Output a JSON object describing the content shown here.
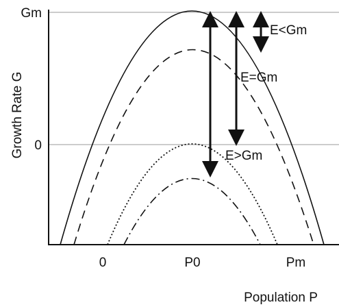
{
  "axes": {
    "x_label": "Population P",
    "y_label": "Growth Rate G",
    "x_ticks": [
      "0",
      "P0",
      "Pm"
    ],
    "y_ticks": [
      "Gm",
      "0"
    ]
  },
  "annotations": {
    "e_less": "E<Gm",
    "e_equal": "E=Gm",
    "e_greater": "E>Gm"
  },
  "colors": {
    "ink": "#111111",
    "gridline": "#9a9a9a"
  }
}
